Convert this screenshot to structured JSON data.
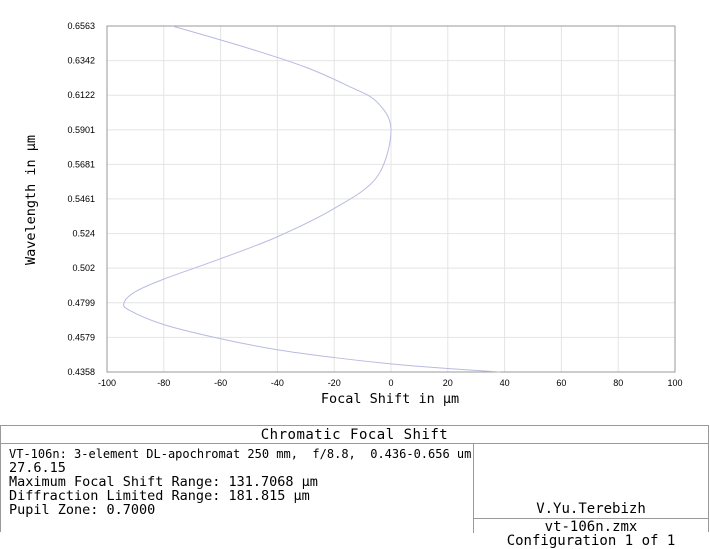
{
  "chart_data": {
    "type": "line",
    "title": "Chromatic Focal Shift",
    "xlabel": "Focal Shift in µm",
    "ylabel": "Wavelength in µm",
    "xlim": [
      -100,
      100
    ],
    "ylim": [
      0.4358,
      0.6563
    ],
    "x_ticks": [
      "-100",
      "-80",
      "-60",
      "-40",
      "-20",
      "0",
      "20",
      "40",
      "60",
      "80",
      "100"
    ],
    "y_ticks": [
      "0.4358",
      "0.4579",
      "0.4799",
      "0.502",
      "0.524",
      "0.5461",
      "0.5681",
      "0.5901",
      "0.6122",
      "0.6342",
      "0.6563"
    ],
    "grid": true,
    "series": [
      {
        "color": "#b8bbe0",
        "x": [
          38.5,
          20,
          0,
          -20,
          -40,
          -60,
          -80,
          -92,
          -94,
          -90,
          -80,
          -60,
          -40,
          -20,
          -5,
          0,
          -5,
          -15,
          -30,
          -50,
          -77
        ],
        "y": [
          0.4358,
          0.438,
          0.441,
          0.445,
          0.45,
          0.457,
          0.466,
          0.475,
          0.4799,
          0.487,
          0.495,
          0.508,
          0.522,
          0.54,
          0.56,
          0.5901,
          0.608,
          0.618,
          0.63,
          0.642,
          0.6563
        ]
      }
    ]
  },
  "info": {
    "line1": "VT-106n: 3-element DL-apochromat 250 mm,  f/8.8,  0.436-0.656 um",
    "line2": "27.6.15",
    "line3": "Maximum Focal Shift Range: 131.7068 µm",
    "line4": "Diffraction Limited Range: 181.815 µm",
    "line5": "Pupil Zone: 0.7000"
  },
  "right": {
    "author": "V.Yu.Terebizh",
    "file": "vt-106n.zmx",
    "config": "Configuration 1 of 1"
  }
}
